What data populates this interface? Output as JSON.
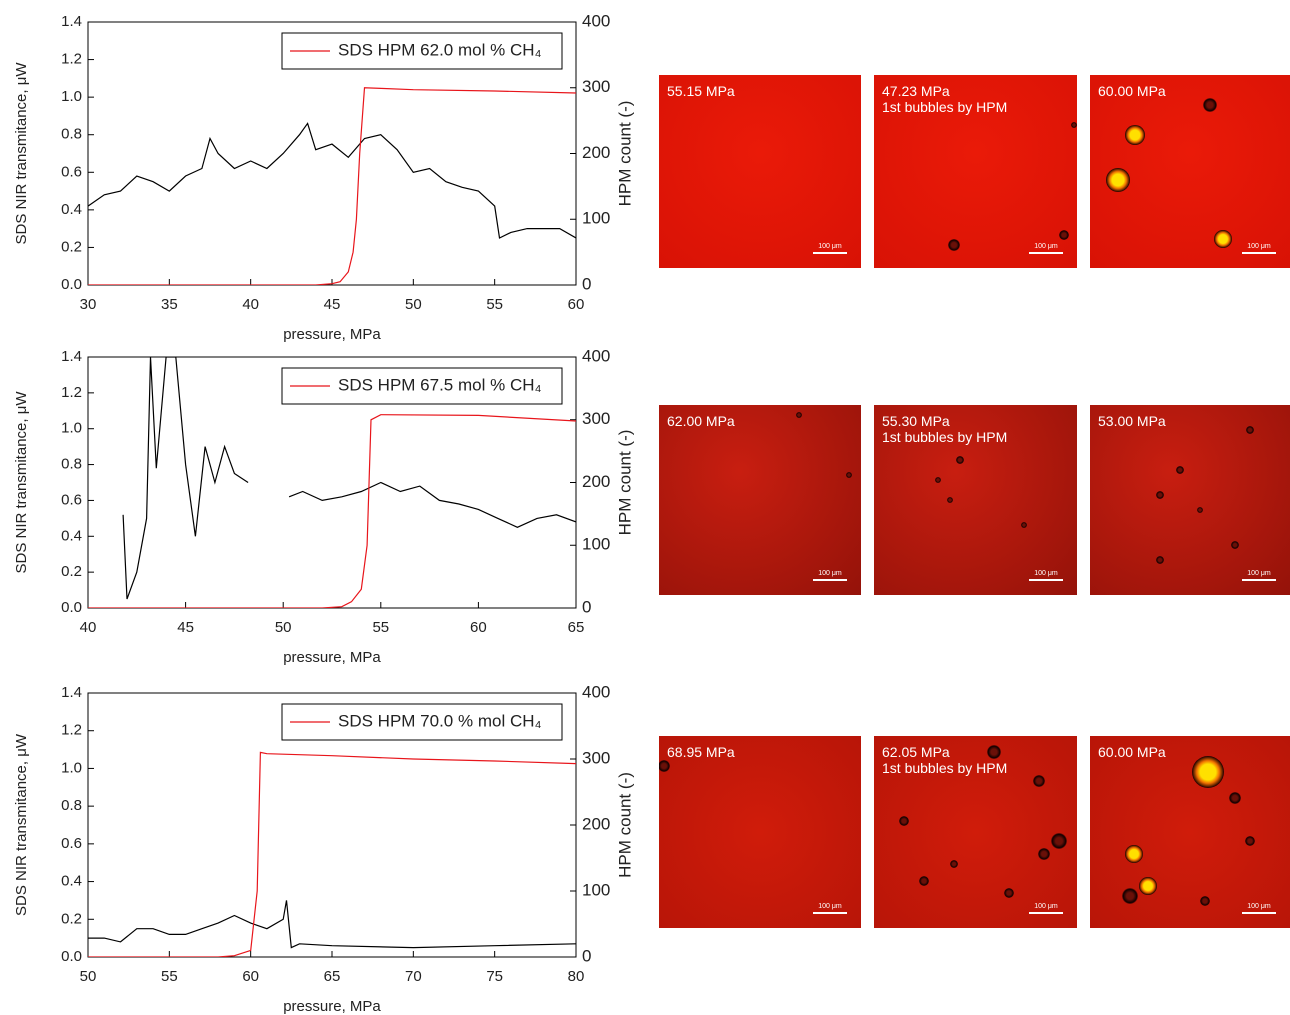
{
  "chart_data": [
    {
      "type": "line",
      "x_label": "pressure, MPa",
      "y_label": "SDS NIR transmitance, μW",
      "y2_label": "HPM count (-)",
      "xlim": [
        30,
        60
      ],
      "xticks": [
        30,
        35,
        40,
        45,
        50,
        55,
        60
      ],
      "ylim": [
        0,
        1.4
      ],
      "yticks": [
        {
          "value": 0,
          "label": "0.0"
        },
        0.2,
        0.4,
        0.6,
        0.8,
        {
          "value": 1,
          "label": "1.0"
        },
        1.2,
        1.4
      ],
      "y2lim": [
        0,
        400
      ],
      "y2ticks": [
        0,
        100,
        200,
        300,
        400
      ],
      "legend": "upper right",
      "series": [
        {
          "color": "#000000",
          "x": [
            30,
            31,
            32,
            33,
            34,
            35,
            36,
            37,
            37.5,
            38,
            39,
            40,
            41,
            42,
            43,
            43.5,
            44,
            45,
            46,
            47,
            48,
            49,
            50,
            51,
            52,
            53,
            54,
            55,
            55.3,
            56,
            57,
            58,
            59,
            60
          ],
          "values": [
            0.42,
            0.48,
            0.5,
            0.58,
            0.55,
            0.5,
            0.58,
            0.62,
            0.78,
            0.7,
            0.62,
            0.66,
            0.62,
            0.7,
            0.8,
            0.86,
            0.72,
            0.75,
            0.68,
            0.78,
            0.8,
            0.72,
            0.6,
            0.62,
            0.55,
            0.52,
            0.5,
            0.42,
            0.25,
            0.28,
            0.3,
            0.3,
            0.3,
            0.25
          ]
        },
        {
          "name": "SDS HPM 62.0 mol % CH₄",
          "color": "#e8151b",
          "axis": "y2",
          "x": [
            30,
            40,
            44,
            45,
            45.5,
            46,
            46.3,
            46.5,
            46.7,
            47,
            48,
            50,
            55,
            60
          ],
          "values": [
            0,
            0,
            0,
            2,
            5,
            20,
            50,
            100,
            200,
            300,
            299,
            297,
            295,
            292
          ]
        }
      ]
    },
    {
      "type": "line",
      "x_label": "pressure, MPa",
      "y_label": "SDS NIR transmitance, μW",
      "y2_label": "HPM count (-)",
      "xlim": [
        40,
        65
      ],
      "xticks": [
        40,
        45,
        50,
        55,
        60,
        65
      ],
      "ylim": [
        0,
        1.4
      ],
      "yticks": [
        {
          "value": 0,
          "label": "0.0"
        },
        0.2,
        0.4,
        0.6,
        0.8,
        {
          "value": 1,
          "label": "1.0"
        },
        1.2,
        1.4
      ],
      "y2lim": [
        0,
        400
      ],
      "y2ticks": [
        0,
        100,
        200,
        300,
        400
      ],
      "legend": "upper right",
      "series": [
        {
          "color": "#000000",
          "x": [
            41.8,
            42,
            42.5,
            43,
            43.2,
            43.5,
            44,
            44.5,
            45,
            45.5,
            46,
            46.5,
            47,
            47.5,
            48.2,
            49,
            50.3,
            51,
            52,
            53,
            54,
            55,
            56,
            57,
            58,
            59,
            60,
            61,
            62,
            63,
            64,
            65
          ],
          "values": [
            0.52,
            0.05,
            0.2,
            0.5,
            1.4,
            0.78,
            1.4,
            1.4,
            0.8,
            0.4,
            0.9,
            0.7,
            0.9,
            0.75,
            0.7,
            null,
            0.62,
            0.65,
            0.6,
            0.62,
            0.65,
            0.7,
            0.65,
            0.68,
            0.6,
            0.58,
            0.55,
            0.5,
            0.45,
            0.5,
            0.52,
            0.48
          ]
        },
        {
          "name": "SDS HPM 67.5 mol % CH₄",
          "color": "#e8151b",
          "axis": "y2",
          "x": [
            40,
            50,
            52,
            53,
            53.5,
            54,
            54.3,
            54.5,
            55,
            60,
            65
          ],
          "values": [
            0,
            0,
            0,
            2,
            10,
            30,
            100,
            300,
            308,
            307,
            298
          ]
        }
      ]
    },
    {
      "type": "line",
      "x_label": "pressure, MPa",
      "y_label": "SDS NIR transmitance, μW",
      "y2_label": "HPM count (-)",
      "xlim": [
        50,
        80
      ],
      "xticks": [
        50,
        55,
        60,
        65,
        70,
        75,
        80
      ],
      "ylim": [
        0,
        1.4
      ],
      "yticks": [
        {
          "value": 0,
          "label": "0.0"
        },
        0.2,
        0.4,
        0.6,
        0.8,
        {
          "value": 1,
          "label": "1.0"
        },
        1.2,
        1.4
      ],
      "y2lim": [
        0,
        400
      ],
      "y2ticks": [
        0,
        100,
        200,
        300,
        400
      ],
      "legend": "upper right",
      "series": [
        {
          "color": "#000000",
          "x": [
            50,
            51,
            52,
            53,
            54,
            55,
            56,
            57,
            58,
            59,
            60,
            61,
            62,
            62.2,
            62.5,
            63,
            65,
            70,
            75,
            80
          ],
          "values": [
            0.1,
            0.1,
            0.08,
            0.15,
            0.15,
            0.12,
            0.12,
            0.15,
            0.18,
            0.22,
            0.18,
            0.15,
            0.2,
            0.3,
            0.05,
            0.07,
            0.06,
            0.05,
            0.06,
            0.07
          ]
        },
        {
          "name": "SDS HPM 70.0 % mol CH₄",
          "color": "#e8151b",
          "axis": "y2",
          "x": [
            50,
            58,
            59,
            60,
            60.4,
            60.6,
            61,
            65,
            70,
            75,
            80
          ],
          "values": [
            0,
            0,
            2,
            10,
            100,
            310,
            308,
            305,
            300,
            297,
            293
          ]
        }
      ]
    }
  ],
  "micrographs": [
    [
      {
        "lines": [
          "55.15 MPa"
        ],
        "scale": "100 μm"
      },
      {
        "lines": [
          "47.23 MPa",
          "1st bubbles by HPM"
        ],
        "scale": "100 μm"
      },
      {
        "lines": [
          "60.00 MPa"
        ],
        "scale": "100 μm"
      }
    ],
    [
      {
        "lines": [
          "62.00 MPa"
        ],
        "scale": "100 μm"
      },
      {
        "lines": [
          "55.30 MPa",
          "1st bubbles by HPM"
        ],
        "scale": "100 μm"
      },
      {
        "lines": [
          "53.00 MPa"
        ],
        "scale": "100 μm"
      }
    ],
    [
      {
        "lines": [
          "68.95 MPa"
        ],
        "scale": "100 μm"
      },
      {
        "lines": [
          "62.05 MPa",
          "1st bubbles by HPM"
        ],
        "scale": "100 μm"
      },
      {
        "lines": [
          "60.00 MPa"
        ],
        "scale": "100 μm"
      }
    ]
  ]
}
